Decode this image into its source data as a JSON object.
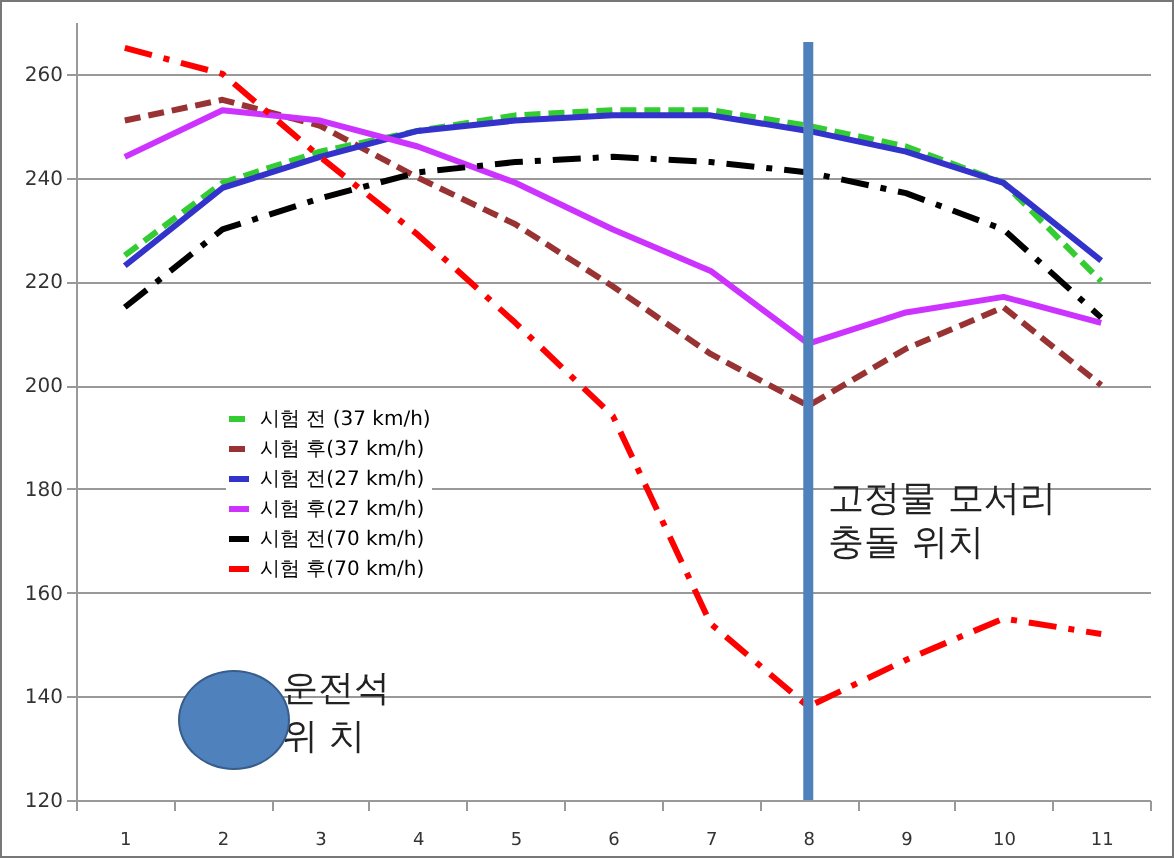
{
  "chart_data": {
    "type": "line",
    "categories": [
      "1",
      "2",
      "3",
      "4",
      "5",
      "6",
      "7",
      "8",
      "9",
      "10",
      "11"
    ],
    "ylim": [
      120,
      270
    ],
    "yticks": [
      120,
      140,
      160,
      180,
      200,
      220,
      240,
      260
    ],
    "grid": "y",
    "legend": "left",
    "series": [
      {
        "name": "시험 전 (37 km/h)",
        "color": "#33cc33",
        "line_style": "dashed",
        "values": [
          225,
          239,
          245,
          249,
          252,
          253,
          253,
          250,
          246,
          239,
          220
        ]
      },
      {
        "name": "시험 후(37 km/h)",
        "color": "#993333",
        "line_style": "dashed",
        "values": [
          251,
          255,
          250,
          240,
          231,
          219,
          206,
          196,
          207,
          215,
          200
        ]
      },
      {
        "name": "시험 전(27 km/h)",
        "color": "#3333cc",
        "line_style": "solid",
        "values": [
          223,
          238,
          244,
          249,
          251,
          252,
          252,
          249,
          245,
          239,
          224
        ]
      },
      {
        "name": "시험 후(27 km/h)",
        "color": "#cc33ff",
        "line_style": "solid",
        "values": [
          244,
          253,
          251,
          246,
          239,
          230,
          222,
          208,
          214,
          217,
          212
        ]
      },
      {
        "name": "시험 전(70 km/h)",
        "color": "#000000",
        "line_style": "dashdot",
        "values": [
          215,
          230,
          236,
          241,
          243,
          244,
          243,
          241,
          237,
          230,
          213
        ]
      },
      {
        "name": "시험 후(70 km/h)",
        "color": "#ff0000",
        "line_style": "dashdot",
        "values": [
          265,
          260,
          244,
          229,
          212,
          194,
          154,
          138,
          147,
          155,
          152
        ]
      }
    ],
    "ref_lines": [
      {
        "axis": "x",
        "value": "8",
        "label": "고정물 모서리\n충돌 위치",
        "color": "#4f81bd"
      }
    ],
    "annotations": [
      "운전석\n위  치"
    ]
  }
}
